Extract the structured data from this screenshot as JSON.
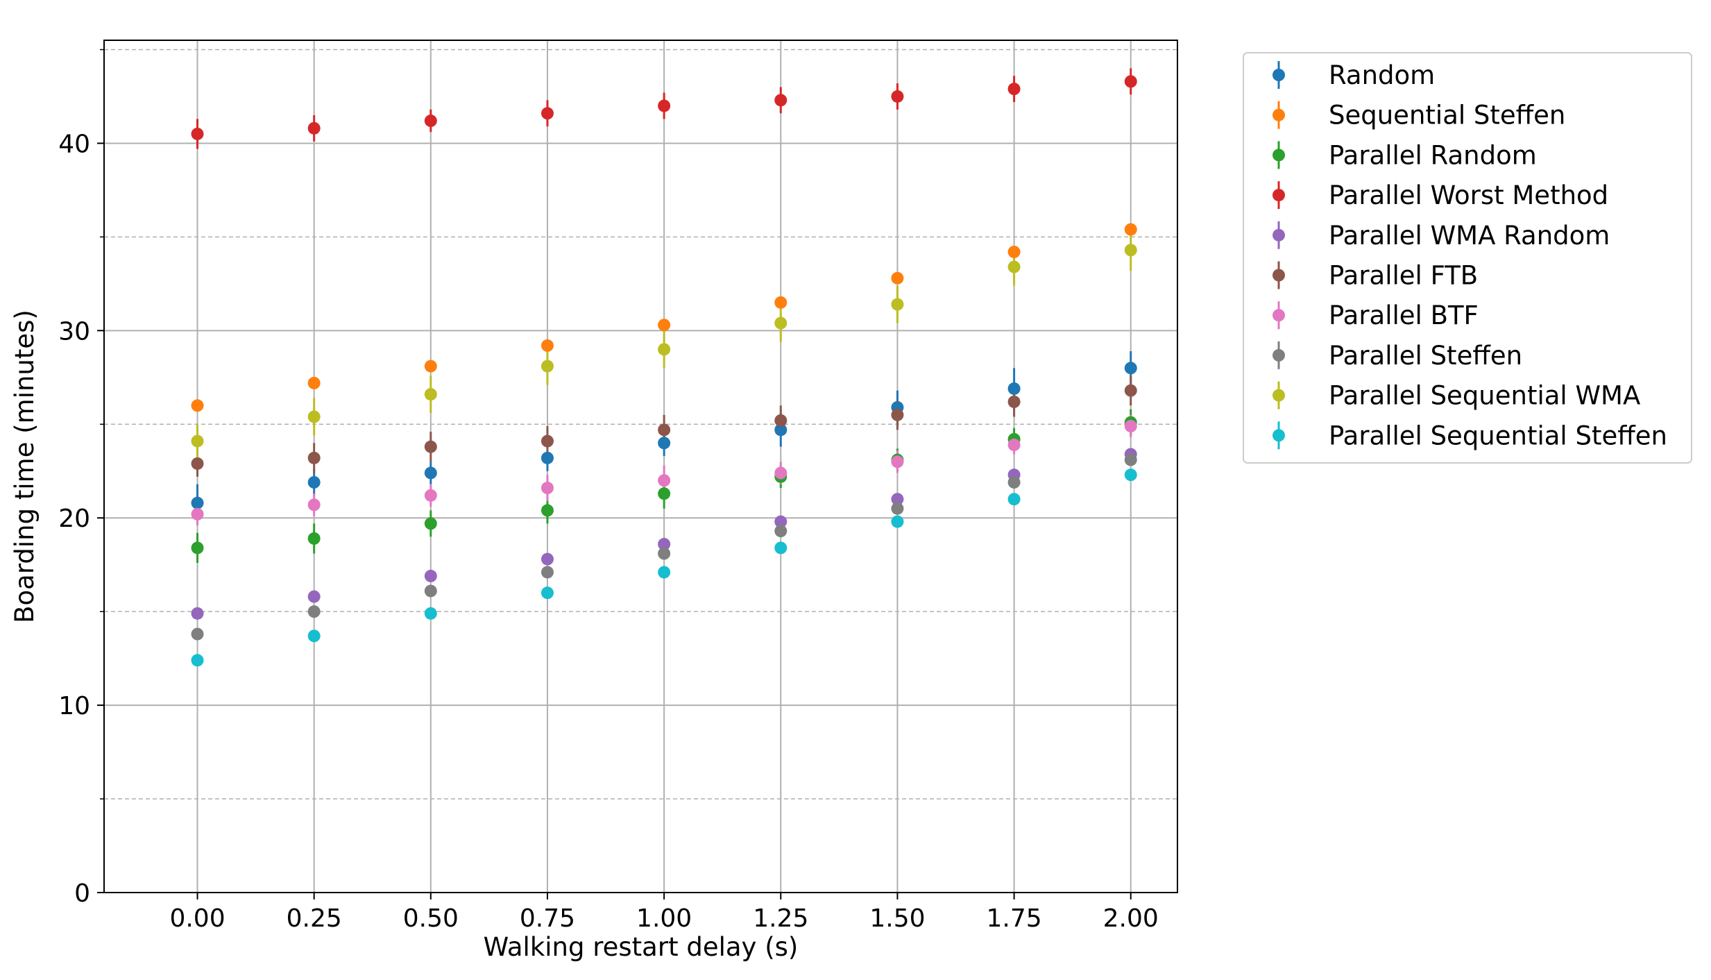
{
  "chart_data": {
    "type": "scatter",
    "xlabel": "Walking restart delay (s)",
    "ylabel": "Boarding time (minutes)",
    "x": [
      0.0,
      0.25,
      0.5,
      0.75,
      1.0,
      1.25,
      1.5,
      1.75,
      2.0
    ],
    "x_tick_labels": [
      "0.00",
      "0.25",
      "0.50",
      "0.75",
      "1.00",
      "1.25",
      "1.50",
      "1.75",
      "2.00"
    ],
    "y_ticks": [
      0,
      10,
      20,
      30,
      40
    ],
    "xlim": [
      -0.2,
      2.1
    ],
    "ylim": [
      0,
      45.5
    ],
    "grid": "major solid, minor dashed (y)",
    "legend_position": "outside right, top",
    "error_bars": true,
    "series": [
      {
        "name": "Random",
        "color": "#1f77b4",
        "values": [
          20.8,
          21.9,
          22.4,
          23.2,
          24.0,
          24.7,
          25.9,
          26.9,
          28.0
        ],
        "errors": [
          1.0,
          0.7,
          0.6,
          0.7,
          0.7,
          0.9,
          0.9,
          1.1,
          0.9
        ]
      },
      {
        "name": "Sequential Steffen",
        "color": "#ff7f0e",
        "values": [
          26.0,
          27.2,
          28.1,
          29.2,
          30.3,
          31.5,
          32.8,
          34.2,
          35.4
        ],
        "errors": [
          0.3,
          0.3,
          0.3,
          0.3,
          0.3,
          0.3,
          0.3,
          0.3,
          0.3
        ]
      },
      {
        "name": "Parallel Random",
        "color": "#2ca02c",
        "values": [
          18.4,
          18.9,
          19.7,
          20.4,
          21.3,
          22.2,
          23.1,
          24.2,
          25.1
        ],
        "errors": [
          0.8,
          0.8,
          0.7,
          0.7,
          0.8,
          0.6,
          0.6,
          0.6,
          0.7
        ]
      },
      {
        "name": "Parallel Worst Method",
        "color": "#d62728",
        "values": [
          40.5,
          40.8,
          41.2,
          41.6,
          42.0,
          42.3,
          42.5,
          42.9,
          43.3
        ],
        "errors": [
          0.8,
          0.7,
          0.6,
          0.7,
          0.7,
          0.7,
          0.7,
          0.7,
          0.7
        ]
      },
      {
        "name": "Parallel WMA Random",
        "color": "#9467bd",
        "values": [
          14.9,
          15.8,
          16.9,
          17.8,
          18.6,
          19.8,
          21.0,
          22.3,
          23.4
        ],
        "errors": [
          0.3,
          0.3,
          0.3,
          0.3,
          0.3,
          0.3,
          0.3,
          0.3,
          0.3
        ]
      },
      {
        "name": "Parallel FTB",
        "color": "#8c564b",
        "values": [
          22.9,
          23.2,
          23.8,
          24.1,
          24.7,
          25.2,
          25.5,
          26.2,
          26.8
        ],
        "errors": [
          0.7,
          0.8,
          0.8,
          0.8,
          0.8,
          0.8,
          0.8,
          0.8,
          0.8
        ]
      },
      {
        "name": "Parallel BTF",
        "color": "#e377c2",
        "values": [
          20.2,
          20.7,
          21.2,
          21.6,
          22.0,
          22.4,
          23.0,
          23.9,
          24.9
        ],
        "errors": [
          0.6,
          0.6,
          0.6,
          0.7,
          0.8,
          0.6,
          0.6,
          0.5,
          0.6
        ]
      },
      {
        "name": "Parallel Steffen",
        "color": "#7f7f7f",
        "values": [
          13.8,
          15.0,
          16.1,
          17.1,
          18.1,
          19.3,
          20.5,
          21.9,
          23.1
        ],
        "errors": [
          0.3,
          0.3,
          0.3,
          0.3,
          0.3,
          0.3,
          0.3,
          0.3,
          0.3
        ]
      },
      {
        "name": "Parallel Sequential WMA",
        "color": "#bcbd22",
        "values": [
          24.1,
          25.4,
          26.6,
          28.1,
          29.0,
          30.4,
          31.4,
          33.4,
          34.3
        ],
        "errors": [
          0.9,
          1.0,
          1.0,
          1.0,
          1.0,
          1.0,
          1.0,
          1.0,
          1.1
        ]
      },
      {
        "name": "Parallel Sequential Steffen",
        "color": "#17becf",
        "values": [
          12.4,
          13.7,
          14.9,
          16.0,
          17.1,
          18.4,
          19.8,
          21.0,
          22.3
        ],
        "errors": [
          0.3,
          0.3,
          0.3,
          0.3,
          0.3,
          0.3,
          0.3,
          0.3,
          0.3
        ]
      }
    ]
  }
}
